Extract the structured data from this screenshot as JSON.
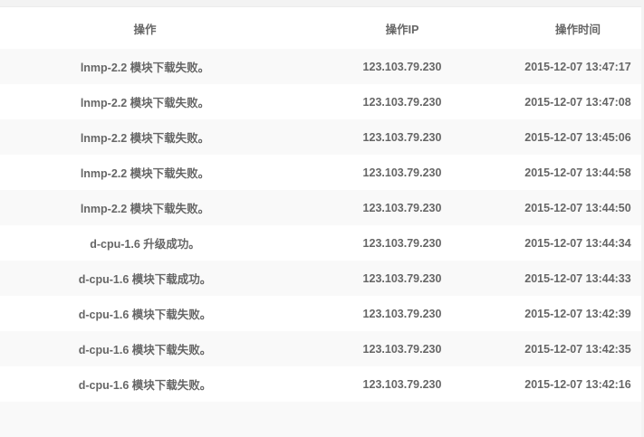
{
  "table": {
    "headers": [
      "操作",
      "操作IP",
      "操作时间"
    ],
    "rows": [
      {
        "action": "lnmp-2.2 模块下载失败。",
        "ip": "123.103.79.230",
        "time": "2015-12-07 13:47:17"
      },
      {
        "action": "lnmp-2.2 模块下载失败。",
        "ip": "123.103.79.230",
        "time": "2015-12-07 13:47:08"
      },
      {
        "action": "lnmp-2.2 模块下载失败。",
        "ip": "123.103.79.230",
        "time": "2015-12-07 13:45:06"
      },
      {
        "action": "lnmp-2.2 模块下载失败。",
        "ip": "123.103.79.230",
        "time": "2015-12-07 13:44:58"
      },
      {
        "action": "lnmp-2.2 模块下载失败。",
        "ip": "123.103.79.230",
        "time": "2015-12-07 13:44:50"
      },
      {
        "action": "d-cpu-1.6 升级成功。",
        "ip": "123.103.79.230",
        "time": "2015-12-07 13:44:34"
      },
      {
        "action": "d-cpu-1.6 模块下载成功。",
        "ip": "123.103.79.230",
        "time": "2015-12-07 13:44:33"
      },
      {
        "action": "d-cpu-1.6 模块下载失败。",
        "ip": "123.103.79.230",
        "time": "2015-12-07 13:42:39"
      },
      {
        "action": "d-cpu-1.6 模块下载失败。",
        "ip": "123.103.79.230",
        "time": "2015-12-07 13:42:35"
      },
      {
        "action": "d-cpu-1.6 模块下载失败。",
        "ip": "123.103.79.230",
        "time": "2015-12-07 13:42:16"
      }
    ]
  }
}
